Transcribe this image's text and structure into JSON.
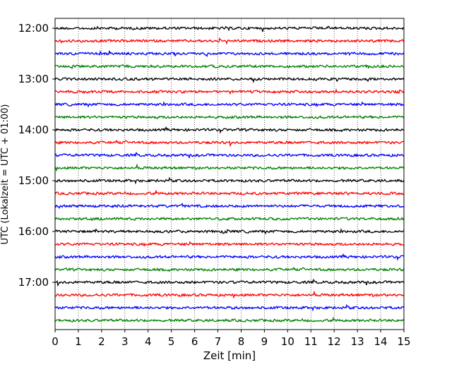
{
  "chart_data": {
    "type": "line",
    "xlabel": "Zeit  [min]",
    "ylabel": "UTC (Lokalzeit = UTC + 01:00)",
    "xlim": [
      0,
      15
    ],
    "x_ticks": [
      "0",
      "1",
      "2",
      "3",
      "4",
      "5",
      "6",
      "7",
      "8",
      "9",
      "10",
      "11",
      "12",
      "13",
      "14",
      "15"
    ],
    "hour_labels": [
      "12:00",
      "13:00",
      "14:00",
      "15:00",
      "16:00",
      "17:00"
    ],
    "trace_start_times": [
      "12:00",
      "12:15",
      "12:30",
      "12:45",
      "13:00",
      "13:15",
      "13:30",
      "13:45",
      "14:00",
      "14:15",
      "14:30",
      "14:45",
      "15:00",
      "15:15",
      "15:30",
      "15:45",
      "16:00",
      "16:15",
      "16:30",
      "16:45",
      "17:00",
      "17:15",
      "17:30",
      "17:45"
    ],
    "colors": [
      "#000000",
      "#ff0000",
      "#0000ff",
      "#008000"
    ],
    "grid": "vertical dotted lines at each minute"
  }
}
